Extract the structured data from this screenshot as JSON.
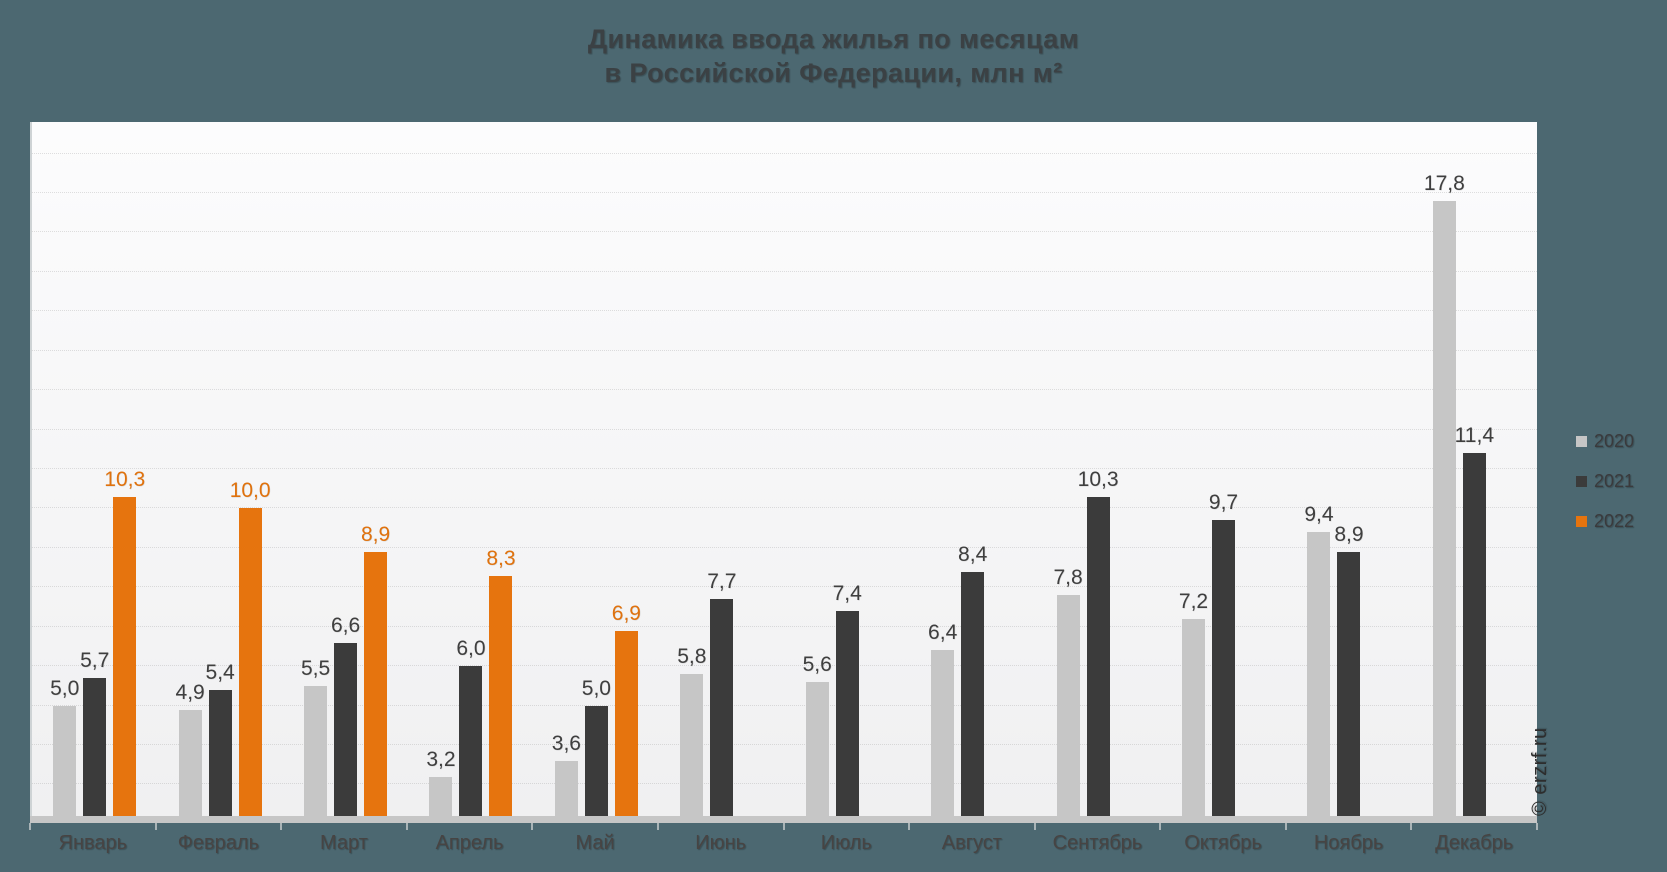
{
  "title": {
    "line1": "Динамика ввода жилья по месяцам",
    "line2": "в Российской Федерации, млн м²"
  },
  "watermark": "© erzrf.ru",
  "colors": {
    "background": "#4c6871",
    "plot_bg_top": "#fcfcfd",
    "plot_bg_bottom": "#f0f0f1",
    "axis_line": "#c6c6c6",
    "tick": "#a9b4b7",
    "series_2020": "#c6c6c6",
    "series_2021": "#3b3b3b",
    "series_2022": "#e6740e",
    "value_label": "#3f3f3f",
    "value_label_2022": "#e0720d",
    "month_label": "#474443",
    "title_color": "#3b4144"
  },
  "legend": {
    "items": [
      {
        "label": "2020",
        "color": "#c6c6c6"
      },
      {
        "label": "2021",
        "color": "#3b3b3b"
      },
      {
        "label": "2022",
        "color": "#e6740e"
      }
    ]
  },
  "chart_data": {
    "type": "bar",
    "title": "Динамика ввода жилья по месяцам в Российской Федерации, млн м²",
    "categories": [
      "Январь",
      "Февраль",
      "Март",
      "Апрель",
      "Май",
      "Июнь",
      "Июль",
      "Август",
      "Сентябрь",
      "Октябрь",
      "Ноябрь",
      "Декабрь"
    ],
    "series": [
      {
        "name": "2020",
        "color": "#c6c6c6",
        "label_color": "#3f3f3f",
        "values": [
          5.0,
          4.9,
          5.5,
          3.2,
          3.6,
          5.8,
          5.6,
          6.4,
          7.8,
          7.2,
          9.4,
          17.8
        ]
      },
      {
        "name": "2021",
        "color": "#3b3b3b",
        "label_color": "#3f3f3f",
        "values": [
          5.7,
          5.4,
          6.6,
          6.0,
          5.0,
          7.7,
          7.4,
          8.4,
          10.3,
          9.7,
          8.9,
          11.4
        ]
      },
      {
        "name": "2022",
        "color": "#e6740e",
        "label_color": "#e0720d",
        "values": [
          10.3,
          10.0,
          8.9,
          8.3,
          6.9,
          null,
          null,
          null,
          null,
          null,
          null,
          null
        ]
      }
    ],
    "ylim": [
      2.2,
      19.8
    ],
    "xlabel": "",
    "ylabel": "млн м²",
    "grid": "faint dotted horizontal lines, 1 unit apart",
    "gridline_step": 1,
    "legend_position": "right",
    "value_labels": true,
    "decimal_separator": ","
  }
}
